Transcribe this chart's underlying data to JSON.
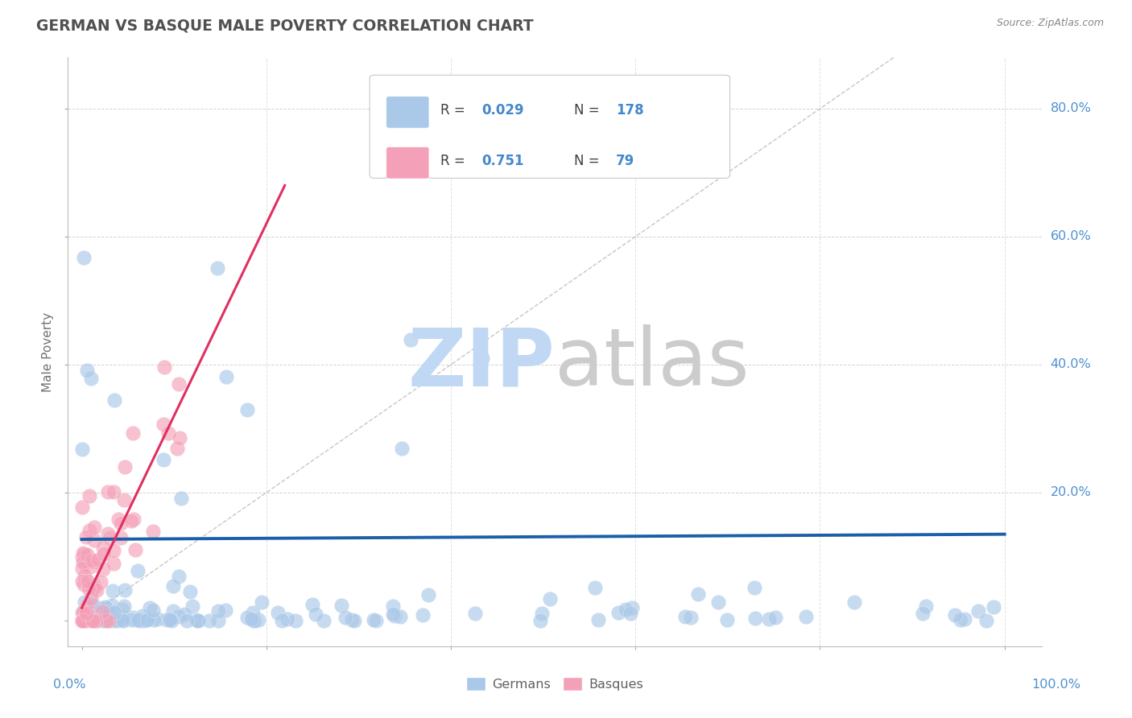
{
  "title": "GERMAN VS BASQUE MALE POVERTY CORRELATION CHART",
  "source_text": "Source: ZipAtlas.com",
  "ylabel": "Male Poverty",
  "german_R": 0.029,
  "german_N": 178,
  "basque_R": 0.751,
  "basque_N": 79,
  "german_color": "#aac8e8",
  "german_line_color": "#1a5fa8",
  "basque_color": "#f4a0b8",
  "basque_line_color": "#e03060",
  "watermark_zip_color": "#c0d8f4",
  "watermark_atlas_color": "#cccccc",
  "background_color": "#ffffff",
  "grid_color": "#cccccc",
  "title_color": "#505050",
  "axis_label_color": "#5090d0",
  "legend_text_color": "#404040",
  "legend_val_color": "#4488cc"
}
